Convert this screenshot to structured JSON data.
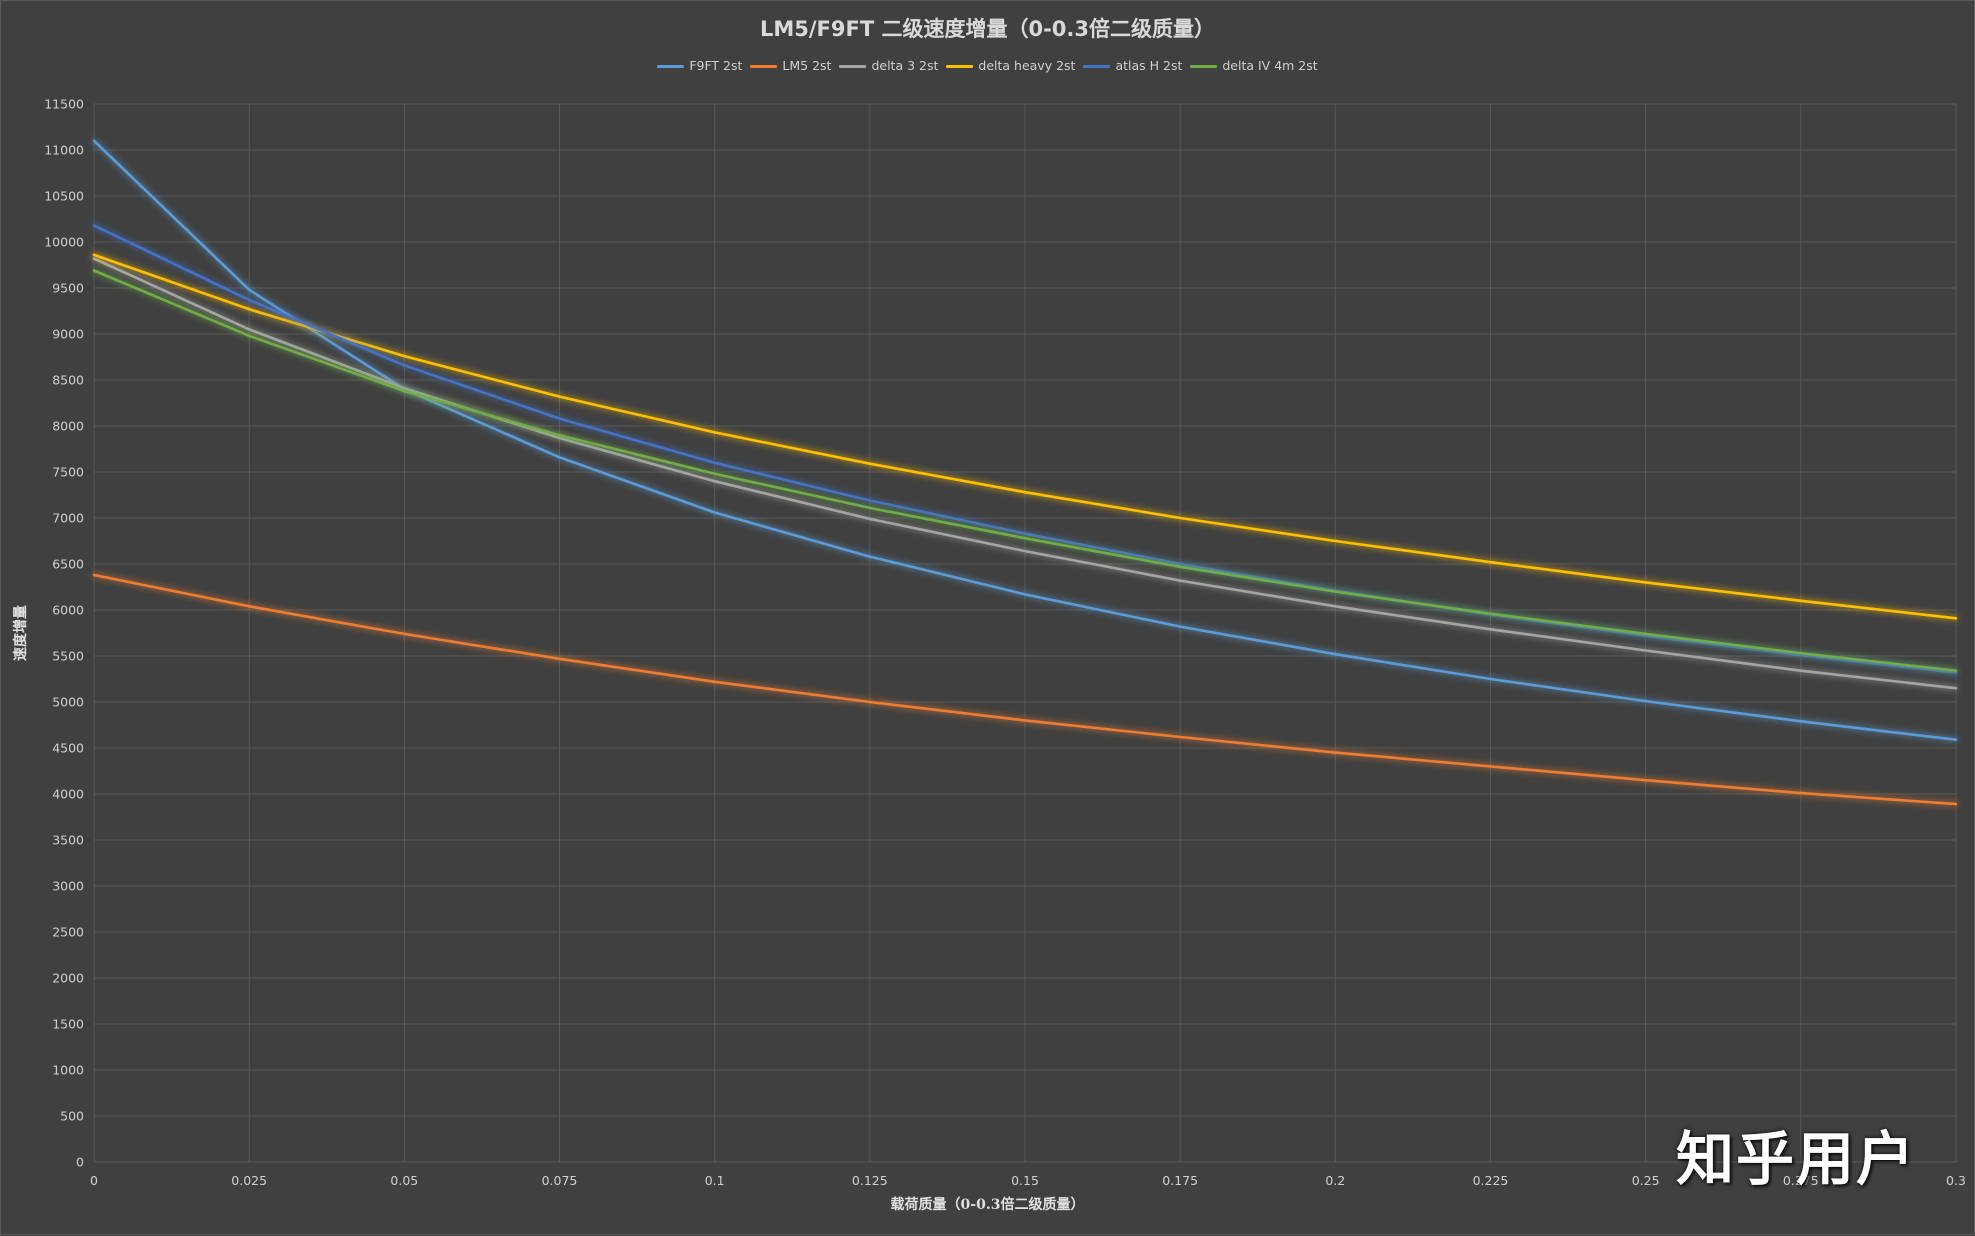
{
  "chart_data": {
    "type": "line",
    "title": "LM5/F9FT 二级速度增量（0-0.3倍二级质量）",
    "xlabel": "载荷质量（0-0.3倍二级质量）",
    "ylabel": "速度增量",
    "x": [
      0,
      0.025,
      0.05,
      0.075,
      0.1,
      0.125,
      0.15,
      0.175,
      0.2,
      0.225,
      0.25,
      0.275,
      0.3
    ],
    "x_tick_labels": [
      "0",
      "0.025",
      "0.05",
      "0.075",
      "0.1",
      "0.125",
      "0.15",
      "0.175",
      "0.2",
      "0.225",
      "0.25",
      "0.275",
      "0.3"
    ],
    "xlim": [
      0,
      0.3
    ],
    "ylim": [
      0,
      11500
    ],
    "y_ticks": [
      0,
      500,
      1000,
      1500,
      2000,
      2500,
      3000,
      3500,
      4000,
      4500,
      5000,
      5500,
      6000,
      6500,
      7000,
      7500,
      8000,
      8500,
      9000,
      9500,
      10000,
      10500,
      11000,
      11500
    ],
    "grid": true,
    "legend_position": "top",
    "series": [
      {
        "name": "F9FT 2st",
        "color": "#5b9bd5",
        "values": [
          11100,
          9480,
          8400,
          7660,
          7060,
          6580,
          6170,
          5820,
          5520,
          5250,
          5010,
          4790,
          4590
        ]
      },
      {
        "name": "LM5 2st",
        "color": "#ed7d31",
        "values": [
          6380,
          6040,
          5740,
          5470,
          5220,
          5000,
          4800,
          4620,
          4450,
          4300,
          4150,
          4010,
          3890
        ]
      },
      {
        "name": "delta 3 2st",
        "color": "#a5a5a5",
        "values": [
          9820,
          9050,
          8410,
          7870,
          7400,
          6990,
          6640,
          6320,
          6040,
          5790,
          5560,
          5340,
          5150
        ]
      },
      {
        "name": "delta heavy 2st",
        "color": "#ffc000",
        "values": [
          9860,
          9270,
          8760,
          8320,
          7930,
          7590,
          7280,
          7000,
          6750,
          6520,
          6300,
          6100,
          5910
        ]
      },
      {
        "name": "atlas H 2st",
        "color": "#4472c4",
        "values": [
          10180,
          9370,
          8660,
          8080,
          7600,
          7190,
          6830,
          6500,
          6210,
          5950,
          5720,
          5510,
          5320
        ]
      },
      {
        "name": "delta IV 4m 2st",
        "color": "#70ad47",
        "values": [
          9690,
          8980,
          8380,
          7900,
          7480,
          7110,
          6780,
          6470,
          6200,
          5960,
          5740,
          5530,
          5340
        ]
      }
    ]
  },
  "watermark": "知乎用户"
}
